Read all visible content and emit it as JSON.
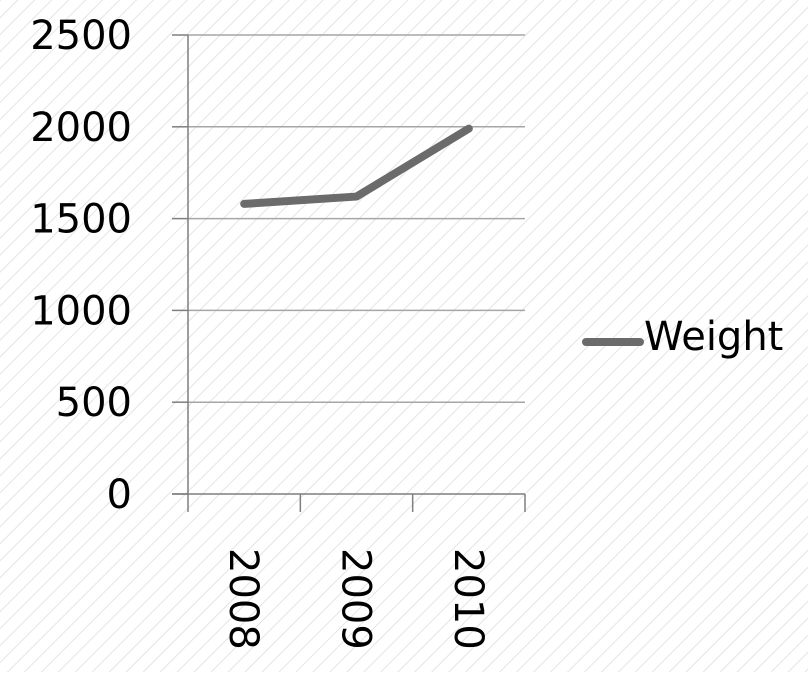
{
  "colors": {
    "background": "#ffffff",
    "hatch": "#e4e4e4",
    "gridline": "#a6a6a6",
    "axis": "#7f7f7f",
    "series_line": "#6b6b6b"
  },
  "chart_data": {
    "type": "line",
    "title": "",
    "xlabel": "",
    "ylabel": "",
    "categories": [
      "2008",
      "2009",
      "2010"
    ],
    "series": [
      {
        "name": "Weight",
        "values": [
          1580,
          1620,
          1990
        ]
      }
    ],
    "ylim": [
      0,
      2500
    ],
    "y_ticks": [
      "0",
      "500",
      "1000",
      "1500",
      "2000",
      "2500"
    ],
    "grid": true,
    "legend": "right",
    "x_tick_rotation": "vertical"
  }
}
